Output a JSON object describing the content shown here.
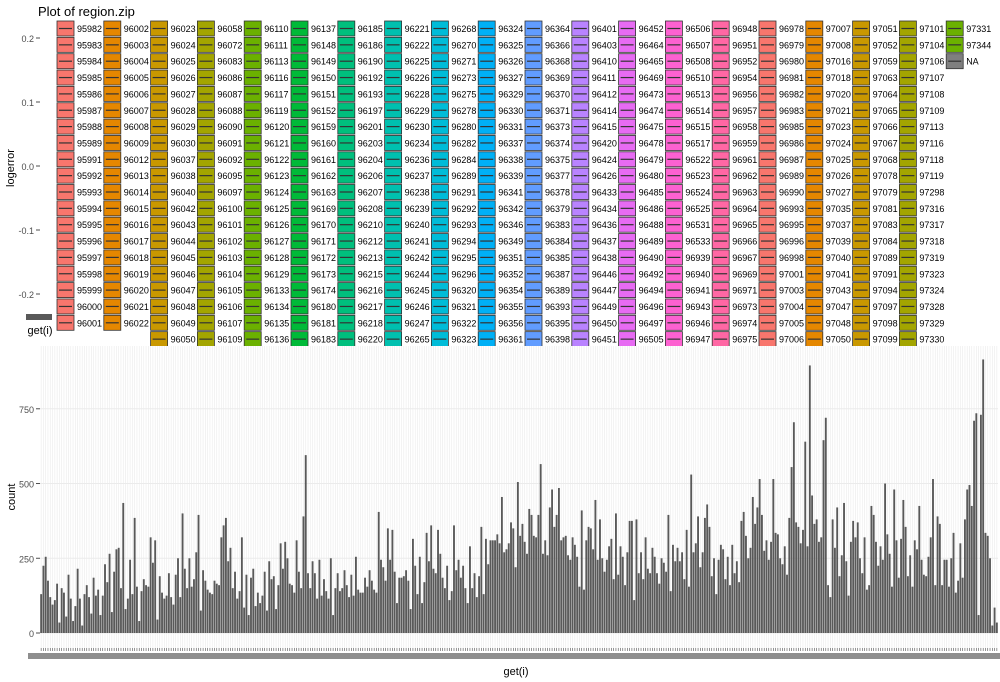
{
  "title": "Plot of region.zip",
  "colors": {
    "bars": "#595959",
    "grid": "#ebebeb",
    "axis_text": "#4d4d4d",
    "na_swatch": "#7f7f7f",
    "swatch_border": "#333333",
    "palette": [
      "#F8766D",
      "#E58700",
      "#C99800",
      "#A3A500",
      "#6BB100",
      "#00BA38",
      "#00BF7D",
      "#00C0AF",
      "#00BCD8",
      "#00B0F6",
      "#619CFF",
      "#B983FF",
      "#E76BF3",
      "#FD61D1",
      "#FF67A4"
    ]
  },
  "chart_data": [
    {
      "type": "scatter",
      "title": "Plot of region.zip",
      "xlabel": "get(i)",
      "ylabel": "logerror",
      "ylim": [
        -0.215,
        0.215
      ],
      "yticks": [
        "0.2",
        "0.1",
        "0.0",
        "-0.1",
        "-0.2"
      ],
      "ytick_values": [
        0.2,
        0.1,
        0.0,
        -0.1,
        -0.2
      ],
      "legend": {
        "position": "right",
        "columns": [
          [
            "95982",
            "95983",
            "95984",
            "95985",
            "95986",
            "95987",
            "95988",
            "95989",
            "95991",
            "95992",
            "95993",
            "95994",
            "95995",
            "95996",
            "95997",
            "95998",
            "95999",
            "96000",
            "96001"
          ],
          [
            "96002",
            "96003",
            "96004",
            "96005",
            "96006",
            "96007",
            "96008",
            "96009",
            "96012",
            "96013",
            "96014",
            "96015",
            "96016",
            "96017",
            "96018",
            "96019",
            "96020",
            "96021",
            "96022"
          ],
          [
            "96023",
            "96024",
            "96025",
            "96026",
            "96027",
            "96028",
            "96029",
            "96030",
            "96037",
            "96038",
            "96040",
            "96042",
            "96043",
            "96044",
            "96045",
            "96046",
            "96047",
            "96048",
            "96049",
            "96050"
          ],
          [
            "96058",
            "96072",
            "96083",
            "96086",
            "96087",
            "96088",
            "96090",
            "96091",
            "96092",
            "96095",
            "96097",
            "96100",
            "96101",
            "96102",
            "96103",
            "96104",
            "96105",
            "96106",
            "96107",
            "96109"
          ],
          [
            "96110",
            "96111",
            "96113",
            "96116",
            "96117",
            "96119",
            "96120",
            "96121",
            "96122",
            "96123",
            "96124",
            "96125",
            "96126",
            "96127",
            "96128",
            "96129",
            "96133",
            "96134",
            "96135",
            "96136"
          ],
          [
            "96137",
            "96148",
            "96149",
            "96150",
            "96151",
            "96152",
            "96159",
            "96160",
            "96161",
            "96162",
            "96163",
            "96169",
            "96170",
            "96171",
            "96172",
            "96173",
            "96174",
            "96180",
            "96181",
            "96183"
          ],
          [
            "96185",
            "96186",
            "96190",
            "96192",
            "96193",
            "96197",
            "96201",
            "96203",
            "96204",
            "96206",
            "96207",
            "96208",
            "96210",
            "96212",
            "96213",
            "96215",
            "96216",
            "96217",
            "96218",
            "96220"
          ],
          [
            "96221",
            "96222",
            "96225",
            "96226",
            "96228",
            "96229",
            "96230",
            "96234",
            "96236",
            "96237",
            "96238",
            "96239",
            "96240",
            "96241",
            "96242",
            "96244",
            "96245",
            "96246",
            "96247",
            "96265",
            "96267"
          ],
          [
            "96268",
            "96270",
            "96271",
            "96273",
            "96275",
            "96278",
            "96280",
            "96282",
            "96284",
            "96289",
            "96291",
            "96292",
            "96293",
            "96294",
            "96295",
            "96296",
            "96320",
            "96321",
            "96322",
            "96323"
          ],
          [
            "96324",
            "96325",
            "96326",
            "96327",
            "96329",
            "96330",
            "96331",
            "96337",
            "96338",
            "96339",
            "96341",
            "96342",
            "96346",
            "96349",
            "96351",
            "96352",
            "96354",
            "96355",
            "96356",
            "96361"
          ],
          [
            "96364",
            "96366",
            "96368",
            "96369",
            "96370",
            "96371",
            "96373",
            "96374",
            "96375",
            "96377",
            "96378",
            "96379",
            "96383",
            "96384",
            "96385",
            "96387",
            "96389",
            "96393",
            "96395",
            "96398"
          ],
          [
            "96401",
            "96403",
            "96410",
            "96411",
            "96412",
            "96414",
            "96415",
            "96420",
            "96424",
            "96426",
            "96433",
            "96434",
            "96436",
            "96437",
            "96438",
            "96446",
            "96447",
            "96449",
            "96450",
            "96451"
          ],
          [
            "96452",
            "96464",
            "96465",
            "96469",
            "96473",
            "96474",
            "96475",
            "96478",
            "96479",
            "96480",
            "96485",
            "96486",
            "96488",
            "96489",
            "96490",
            "96492",
            "96494",
            "96496",
            "96497",
            "96505"
          ],
          [
            "96506",
            "96507",
            "96508",
            "96510",
            "96513",
            "96514",
            "96515",
            "96517",
            "96522",
            "96523",
            "96524",
            "96525",
            "96531",
            "96533",
            "96939",
            "96940",
            "96941",
            "96943",
            "96946",
            "96947"
          ],
          [
            "96948",
            "96951",
            "96952",
            "96954",
            "96956",
            "96957",
            "96958",
            "96959",
            "96961",
            "96962",
            "96963",
            "96964",
            "96965",
            "96966",
            "96967",
            "96969",
            "96971",
            "96973",
            "96974",
            "96975"
          ],
          [
            "96978",
            "96979",
            "96980",
            "96981",
            "96982",
            "96983",
            "96985",
            "96986",
            "96987",
            "96989",
            "96990",
            "96993",
            "96995",
            "96996",
            "96998",
            "97001",
            "97003",
            "97004",
            "97005",
            "97006"
          ],
          [
            "97007",
            "97008",
            "97016",
            "97018",
            "97020",
            "97021",
            "97023",
            "97024",
            "97025",
            "97026",
            "97027",
            "97035",
            "97037",
            "97039",
            "97040",
            "97041",
            "97043",
            "97047",
            "97048",
            "97050"
          ],
          [
            "97051",
            "97052",
            "97059",
            "97063",
            "97064",
            "97065",
            "97066",
            "97067",
            "97068",
            "97078",
            "97079",
            "97081",
            "97083",
            "97084",
            "97089",
            "97091",
            "97094",
            "97097",
            "97098",
            "97099"
          ],
          [
            "97101",
            "97104",
            "97106",
            "97107",
            "97108",
            "97109",
            "97113",
            "97116",
            "97118",
            "97119",
            "97298",
            "97316",
            "97317",
            "97318",
            "97319",
            "97323",
            "97324",
            "97328",
            "97329",
            "97330"
          ],
          [
            "97331",
            "97344",
            "NA"
          ]
        ]
      }
    },
    {
      "type": "bar",
      "xlabel": "get(i)",
      "ylabel": "count",
      "ylim": [
        0,
        960
      ],
      "yticks": [
        "750",
        "500",
        "250",
        "0"
      ],
      "ytick_values": [
        750,
        500,
        250,
        0
      ],
      "values": [
        130,
        225,
        255,
        175,
        120,
        95,
        110,
        165,
        35,
        150,
        135,
        55,
        195,
        115,
        40,
        90,
        215,
        115,
        25,
        130,
        160,
        120,
        65,
        185,
        125,
        145,
        60,
        125,
        230,
        170,
        265,
        70,
        205,
        280,
        285,
        150,
        435,
        80,
        115,
        245,
        130,
        385,
        155,
        40,
        140,
        180,
        160,
        155,
        320,
        235,
        310,
        45,
        190,
        135,
        115,
        125,
        200,
        120,
        95,
        195,
        250,
        120,
        400,
        215,
        150,
        250,
        155,
        180,
        270,
        395,
        75,
        210,
        175,
        145,
        135,
        130,
        175,
        165,
        160,
        320,
        360,
        385,
        240,
        285,
        150,
        205,
        115,
        140,
        320,
        85,
        195,
        60,
        185,
        215,
        90,
        135,
        100,
        125,
        205,
        75,
        240,
        180,
        190,
        80,
        160,
        300,
        215,
        305,
        250,
        165,
        160,
        135,
        310,
        205,
        150,
        390,
        595,
        200,
        150,
        240,
        200,
        115,
        245,
        125,
        180,
        140,
        115,
        250,
        60,
        150,
        200,
        140,
        150,
        210,
        160,
        120,
        195,
        125,
        255,
        145,
        135,
        135,
        185,
        155,
        210,
        175,
        145,
        135,
        405,
        245,
        220,
        175,
        350,
        245,
        345,
        205,
        100,
        185,
        185,
        190,
        210,
        175,
        80,
        315,
        225,
        130,
        255,
        100,
        170,
        335,
        240,
        360,
        215,
        200,
        345,
        265,
        185,
        150,
        225,
        110,
        140,
        360,
        210,
        245,
        185,
        225,
        150,
        100,
        290,
        150,
        200,
        120,
        190,
        355,
        130,
        315,
        230,
        310,
        310,
        310,
        330,
        300,
        455,
        270,
        280,
        300,
        370,
        350,
        220,
        505,
        325,
        365,
        305,
        265,
        415,
        395,
        325,
        320,
        395,
        565,
        265,
        310,
        260,
        420,
        480,
        355,
        395,
        485,
        310,
        320,
        325,
        260,
        245,
        320,
        295,
        255,
        155,
        410,
        145,
        310,
        355,
        350,
        280,
        445,
        245,
        380,
        250,
        205,
        245,
        290,
        315,
        180,
        400,
        195,
        290,
        255,
        160,
        270,
        375,
        375,
        110,
        380,
        200,
        270,
        180,
        320,
        215,
        200,
        285,
        255,
        200,
        165,
        250,
        235,
        205,
        395,
        140,
        295,
        240,
        285,
        240,
        270,
        180,
        345,
        155,
        530,
        270,
        300,
        390,
        220,
        270,
        385,
        430,
        355,
        190,
        250,
        130,
        245,
        295,
        280,
        180,
        255,
        160,
        295,
        200,
        240,
        170,
        375,
        405,
        325,
        250,
        285,
        455,
        365,
        420,
        515,
        395,
        275,
        310,
        245,
        305,
        515,
        335,
        330,
        250,
        230,
        290,
        195,
        385,
        555,
        705,
        370,
        355,
        300,
        345,
        640,
        290,
        895,
        460,
        365,
        380,
        305,
        320,
        645,
        720,
        160,
        120,
        380,
        285,
        420,
        190,
        260,
        435,
        240,
        125,
        305,
        375,
        320,
        370,
        250,
        200,
        320,
        145,
        160,
        425,
        395,
        305,
        225,
        290,
        245,
        500,
        330,
        265,
        155,
        480,
        310,
        185,
        315,
        445,
        355,
        190,
        260,
        155,
        310,
        280,
        425,
        245,
        195,
        190,
        255,
        320,
        515,
        160,
        390,
        365,
        160,
        245,
        245,
        155,
        250,
        335,
        135,
        175,
        300,
        185,
        380,
        480,
        495,
        425,
        710,
        735,
        60,
        730,
        915,
        335,
        325,
        250,
        25,
        85,
        35
      ]
    }
  ]
}
